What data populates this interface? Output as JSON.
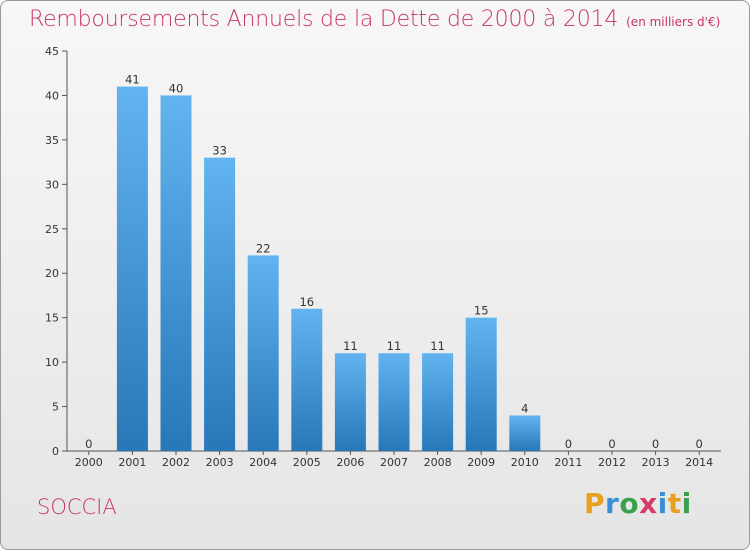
{
  "title": "Remboursements Annuels de la Dette de 2000 à 2014",
  "unit": "(en milliers d'€)",
  "commune": "SOCCIA",
  "logo": {
    "letters": [
      "P",
      "r",
      "o",
      "x",
      "i",
      "t",
      "i"
    ],
    "colors": [
      "#e8a020",
      "#3a8ed8",
      "#3aa04a",
      "#d83a6a",
      "#3a8ed8",
      "#e8a020",
      "#3aa04a"
    ]
  },
  "colors": {
    "title": "#c8346a",
    "bar_top": "#62b4f0",
    "bar_bottom": "#2877b8"
  },
  "chart_data": {
    "type": "bar",
    "categories": [
      "2000",
      "2001",
      "2002",
      "2003",
      "2004",
      "2005",
      "2006",
      "2007",
      "2008",
      "2009",
      "2010",
      "2011",
      "2012",
      "2013",
      "2014"
    ],
    "values": [
      0,
      41,
      40,
      33,
      22,
      16,
      11,
      11,
      11,
      15,
      4,
      0,
      0,
      0,
      0
    ],
    "data_labels": [
      "0",
      "41",
      "40",
      "33",
      "22",
      "16",
      "11",
      "11",
      "11",
      "15",
      "4",
      "0",
      "0",
      "0",
      "0"
    ],
    "yticks": [
      0,
      5,
      10,
      15,
      20,
      25,
      30,
      35,
      40,
      45
    ],
    "ylim": [
      0,
      45
    ],
    "xlabel": "",
    "ylabel": "",
    "grid": false,
    "legend": "none"
  }
}
